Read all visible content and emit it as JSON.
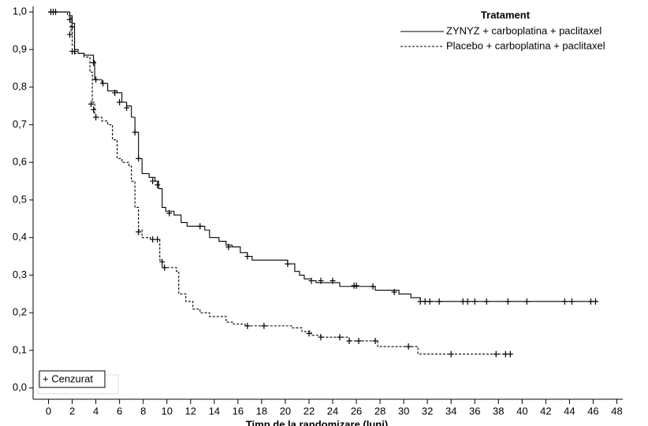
{
  "chart_data": {
    "type": "line",
    "drawstyle": "steps-post",
    "xlabel": "Timp de la randomizare (luni)",
    "legend_title": "Tratament",
    "legend": "upper right",
    "censor_label": "+ Cenzurat",
    "xlim": [
      -1.3,
      48.5
    ],
    "ylim": [
      -0.03,
      1.015
    ],
    "xticks": [
      0,
      2,
      4,
      6,
      8,
      10,
      12,
      14,
      16,
      18,
      20,
      22,
      24,
      26,
      28,
      30,
      32,
      34,
      36,
      38,
      40,
      42,
      44,
      46,
      48
    ],
    "yticks": [
      {
        "value": 0,
        "label": "0,0"
      },
      {
        "value": 0.1,
        "label": "0,1"
      },
      {
        "value": 0.2,
        "label": "0,2"
      },
      {
        "value": 0.3,
        "label": "0,3"
      },
      {
        "value": 0.4,
        "label": "0,4"
      },
      {
        "value": 0.5,
        "label": "0,5"
      },
      {
        "value": 0.6,
        "label": "0,6"
      },
      {
        "value": 0.7,
        "label": "0,7"
      },
      {
        "value": 0.8,
        "label": "0,8"
      },
      {
        "value": 0.9,
        "label": "0,9"
      },
      {
        "value": 1,
        "label": "1,0"
      }
    ],
    "series": [
      {
        "name": "ZYNYZ + carboplatina + paclitaxel",
        "color": "#000000",
        "dash": "solid",
        "x": [
          0,
          1.8,
          2.0,
          2.2,
          2.5,
          3.0,
          3.8,
          3.9,
          4.5,
          5.0,
          5.8,
          6.2,
          6.6,
          7.0,
          7.3,
          7.6,
          7.9,
          8.5,
          9.0,
          9.3,
          9.6,
          9.9,
          10.6,
          11.2,
          11.7,
          13.2,
          13.6,
          14.4,
          15.0,
          15.5,
          16.2,
          16.8,
          17.2,
          20.2,
          20.8,
          21.2,
          21.6,
          22.2,
          22.6,
          24.6,
          27.6,
          29.6,
          30.6,
          31.4,
          46.4
        ],
        "values": [
          1.0,
          0.99,
          0.97,
          0.9,
          0.89,
          0.885,
          0.87,
          0.82,
          0.81,
          0.79,
          0.785,
          0.76,
          0.75,
          0.72,
          0.68,
          0.61,
          0.57,
          0.56,
          0.55,
          0.53,
          0.48,
          0.47,
          0.46,
          0.44,
          0.43,
          0.42,
          0.4,
          0.39,
          0.38,
          0.375,
          0.36,
          0.35,
          0.34,
          0.33,
          0.31,
          0.3,
          0.29,
          0.285,
          0.28,
          0.27,
          0.26,
          0.25,
          0.24,
          0.23,
          0.23
        ],
        "censor_x": [
          0.2,
          0.6,
          1.8,
          2.0,
          2.2,
          3.8,
          4.0,
          4.6,
          5.6,
          6.0,
          6.6,
          7.3,
          7.6,
          8.8,
          9.2,
          10.2,
          12.8,
          15.2,
          16.8,
          20.2,
          22.2,
          23.0,
          24.0,
          25.8,
          26.0,
          27.4,
          29.2,
          31.4,
          31.8,
          32.2,
          33.0,
          35.0,
          35.4,
          36.0,
          37.0,
          38.8,
          40.4,
          43.6,
          44.2,
          45.8,
          46.2
        ],
        "censor_values": [
          1.0,
          1.0,
          0.98,
          0.96,
          0.895,
          0.865,
          0.82,
          0.81,
          0.785,
          0.76,
          0.745,
          0.68,
          0.61,
          0.55,
          0.54,
          0.465,
          0.43,
          0.375,
          0.35,
          0.33,
          0.285,
          0.285,
          0.285,
          0.272,
          0.272,
          0.27,
          0.255,
          0.23,
          0.23,
          0.23,
          0.23,
          0.23,
          0.23,
          0.23,
          0.23,
          0.23,
          0.23,
          0.23,
          0.23,
          0.23,
          0.23
        ]
      },
      {
        "name": "Placebo + carboplatina + paclitaxel",
        "color": "#000000",
        "dash": "dashed",
        "x": [
          0,
          1.6,
          1.9,
          2.0,
          2.2,
          3.0,
          3.5,
          3.7,
          3.9,
          4.0,
          4.5,
          5.0,
          5.4,
          5.8,
          6.2,
          6.8,
          7.0,
          7.3,
          7.6,
          7.9,
          8.6,
          9.4,
          9.6,
          10.8,
          11.0,
          11.6,
          12.2,
          12.8,
          13.6,
          15.0,
          15.6,
          16.6,
          20.6,
          21.4,
          22.2,
          23.0,
          25.4,
          27.8,
          31.2,
          39.2
        ],
        "values": [
          1.0,
          0.99,
          0.95,
          0.91,
          0.89,
          0.88,
          0.84,
          0.76,
          0.73,
          0.72,
          0.71,
          0.7,
          0.66,
          0.61,
          0.6,
          0.59,
          0.55,
          0.48,
          0.42,
          0.4,
          0.395,
          0.34,
          0.32,
          0.31,
          0.25,
          0.23,
          0.21,
          0.2,
          0.19,
          0.175,
          0.17,
          0.165,
          0.16,
          0.15,
          0.14,
          0.135,
          0.125,
          0.11,
          0.09,
          0.09
        ],
        "censor_x": [
          0.4,
          1.8,
          2.0,
          3.6,
          3.8,
          4.0,
          7.6,
          8.8,
          9.2,
          9.6,
          9.8,
          16.8,
          18.2,
          22.0,
          23.0,
          24.6,
          25.4,
          26.2,
          27.6,
          30.4,
          34.0,
          37.8,
          38.6,
          39.0
        ],
        "censor_values": [
          1.0,
          0.94,
          0.895,
          0.755,
          0.74,
          0.72,
          0.415,
          0.395,
          0.395,
          0.335,
          0.32,
          0.165,
          0.165,
          0.145,
          0.135,
          0.135,
          0.125,
          0.125,
          0.125,
          0.11,
          0.09,
          0.09,
          0.09,
          0.09
        ]
      }
    ]
  }
}
